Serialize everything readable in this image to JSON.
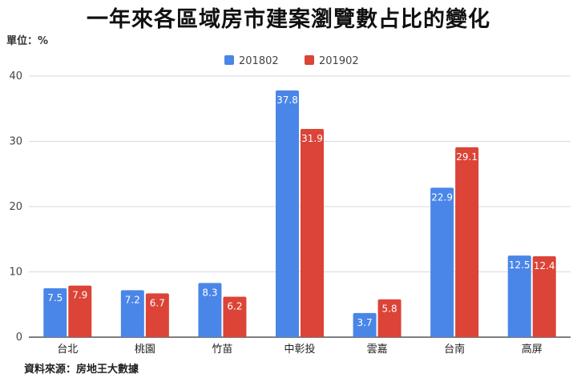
{
  "header": {
    "title": "一年來各區域房市建案瀏覽數占比的變化",
    "unit": "單位：%"
  },
  "footer": {
    "source": "資料來源：房地王大數據"
  },
  "chart_data": {
    "type": "bar",
    "title": "一年來各區域房市建案瀏覽數占比的變化",
    "xlabel": "",
    "ylabel": "",
    "categories": [
      "台北",
      "桃園",
      "竹苗",
      "中彰投",
      "雲嘉",
      "台南",
      "高屏"
    ],
    "series": [
      {
        "name": "201802",
        "color": "#4a86e8",
        "values": [
          7.5,
          7.2,
          8.3,
          37.8,
          3.7,
          22.9,
          12.5
        ]
      },
      {
        "name": "201902",
        "color": "#db4437",
        "values": [
          7.9,
          6.7,
          6.2,
          31.9,
          5.8,
          29.1,
          12.4
        ]
      }
    ],
    "ylim": [
      0,
      40
    ],
    "yticks": [
      0,
      10,
      20,
      30,
      40
    ],
    "grid": true,
    "legend_position": "top-center",
    "data_labels": true
  }
}
